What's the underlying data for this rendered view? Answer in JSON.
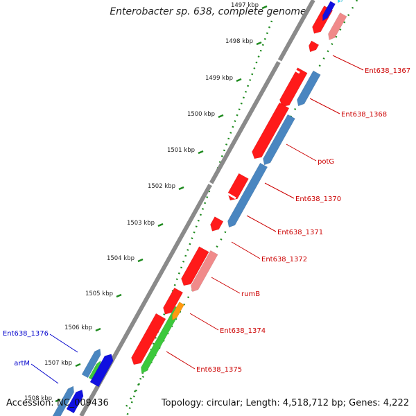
{
  "title": "Enterobacter sp. 638, complete genome",
  "footer": {
    "accession": "Accession: NC_009436",
    "topology": "Topology: circular; Length: 4,518,712 bp; Genes: 4,222"
  },
  "colors": {
    "backbone": "#8a8a8a",
    "tick_dots": "#1e8a1e",
    "red": "#ff1a1a",
    "pink": "#f08a8a",
    "steel": "#4a86c0",
    "blue": "#1010e0",
    "green": "#3cc83c",
    "orange": "#ff9a10",
    "cyan": "#20e0ff",
    "label_red": "#cc0000",
    "label_blue": "#0000cc"
  },
  "ticks": [
    {
      "label": "1497 kbp"
    },
    {
      "label": "1498 kbp"
    },
    {
      "label": "1499 kbp"
    },
    {
      "label": "1500 kbp"
    },
    {
      "label": "1501 kbp"
    },
    {
      "label": "1502 kbp"
    },
    {
      "label": "1503 kbp"
    },
    {
      "label": "1504 kbp"
    },
    {
      "label": "1505 kbp"
    },
    {
      "label": "1506 kbp"
    },
    {
      "label": "1507 kbp"
    },
    {
      "label": "1508 kbp"
    }
  ],
  "gene_labels": [
    {
      "text": "Ent638_1367",
      "color": "#cc0000"
    },
    {
      "text": "Ent638_1368",
      "color": "#cc0000"
    },
    {
      "text": "potG",
      "color": "#cc0000"
    },
    {
      "text": "Ent638_1370",
      "color": "#cc0000"
    },
    {
      "text": "Ent638_1371",
      "color": "#cc0000"
    },
    {
      "text": "Ent638_1372",
      "color": "#cc0000"
    },
    {
      "text": "rumB",
      "color": "#cc0000"
    },
    {
      "text": "Ent638_1374",
      "color": "#cc0000"
    },
    {
      "text": "Ent638_1375",
      "color": "#cc0000"
    },
    {
      "text": "Ent638_1376",
      "color": "#0000cc"
    },
    {
      "text": "artM",
      "color": "#0000cc"
    }
  ]
}
